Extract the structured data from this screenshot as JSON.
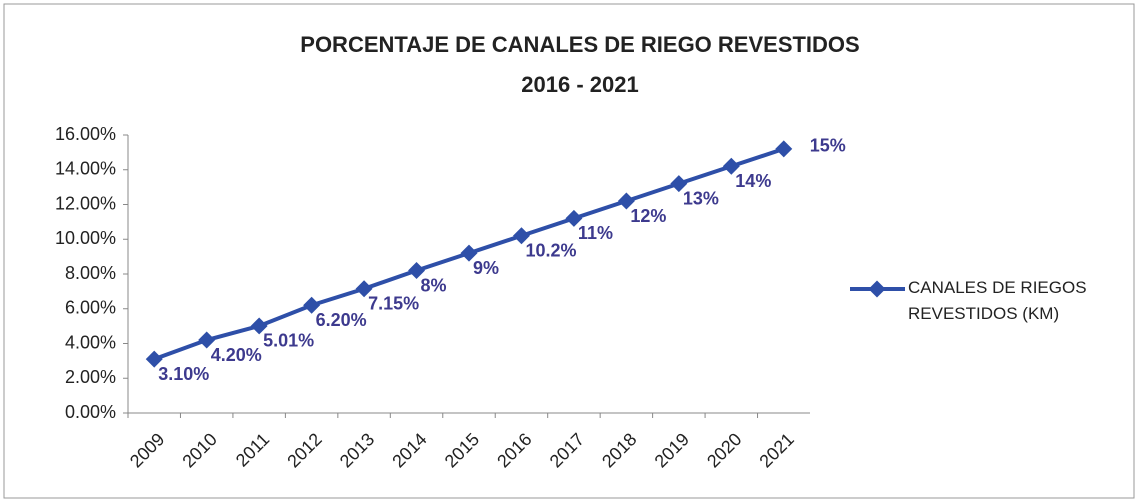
{
  "chart_data": {
    "type": "line",
    "title": "PORCENTAJE DE CANALES DE RIEGO REVESTIDOS",
    "subtitle": "2016 - 2021",
    "categories": [
      "2009",
      "2010",
      "2011",
      "2012",
      "2013",
      "2014",
      "2015",
      "2016",
      "2017",
      "2018",
      "2019",
      "2020",
      "2021"
    ],
    "series": [
      {
        "name": "CANALES DE RIEGOS REVESTIDOS (KM)",
        "color": "#2e4fa8",
        "values": [
          3.1,
          4.2,
          5.01,
          6.2,
          7.15,
          8.2,
          9.2,
          10.2,
          11.2,
          12.2,
          13.2,
          14.2,
          15.2
        ],
        "value_labels": [
          "3.10%",
          "4.20%",
          "5.01%",
          "6.20%",
          "7.15%",
          "8%",
          "9%",
          "10.2%",
          "11%",
          "12%",
          "13%",
          "14%",
          "15%"
        ]
      }
    ],
    "ylim": [
      0,
      16
    ],
    "yticks": [
      {
        "value": 0,
        "label": "0.00%"
      },
      {
        "value": 2,
        "label": "2.00%"
      },
      {
        "value": 4,
        "label": "4.00%"
      },
      {
        "value": 6,
        "label": "6.00%"
      },
      {
        "value": 8,
        "label": "8.00%"
      },
      {
        "value": 10,
        "label": "10.00%"
      },
      {
        "value": 12,
        "label": "12.00%"
      },
      {
        "value": 14,
        "label": "14.00%"
      },
      {
        "value": 16,
        "label": "16.00%"
      }
    ],
    "legend": "right"
  }
}
